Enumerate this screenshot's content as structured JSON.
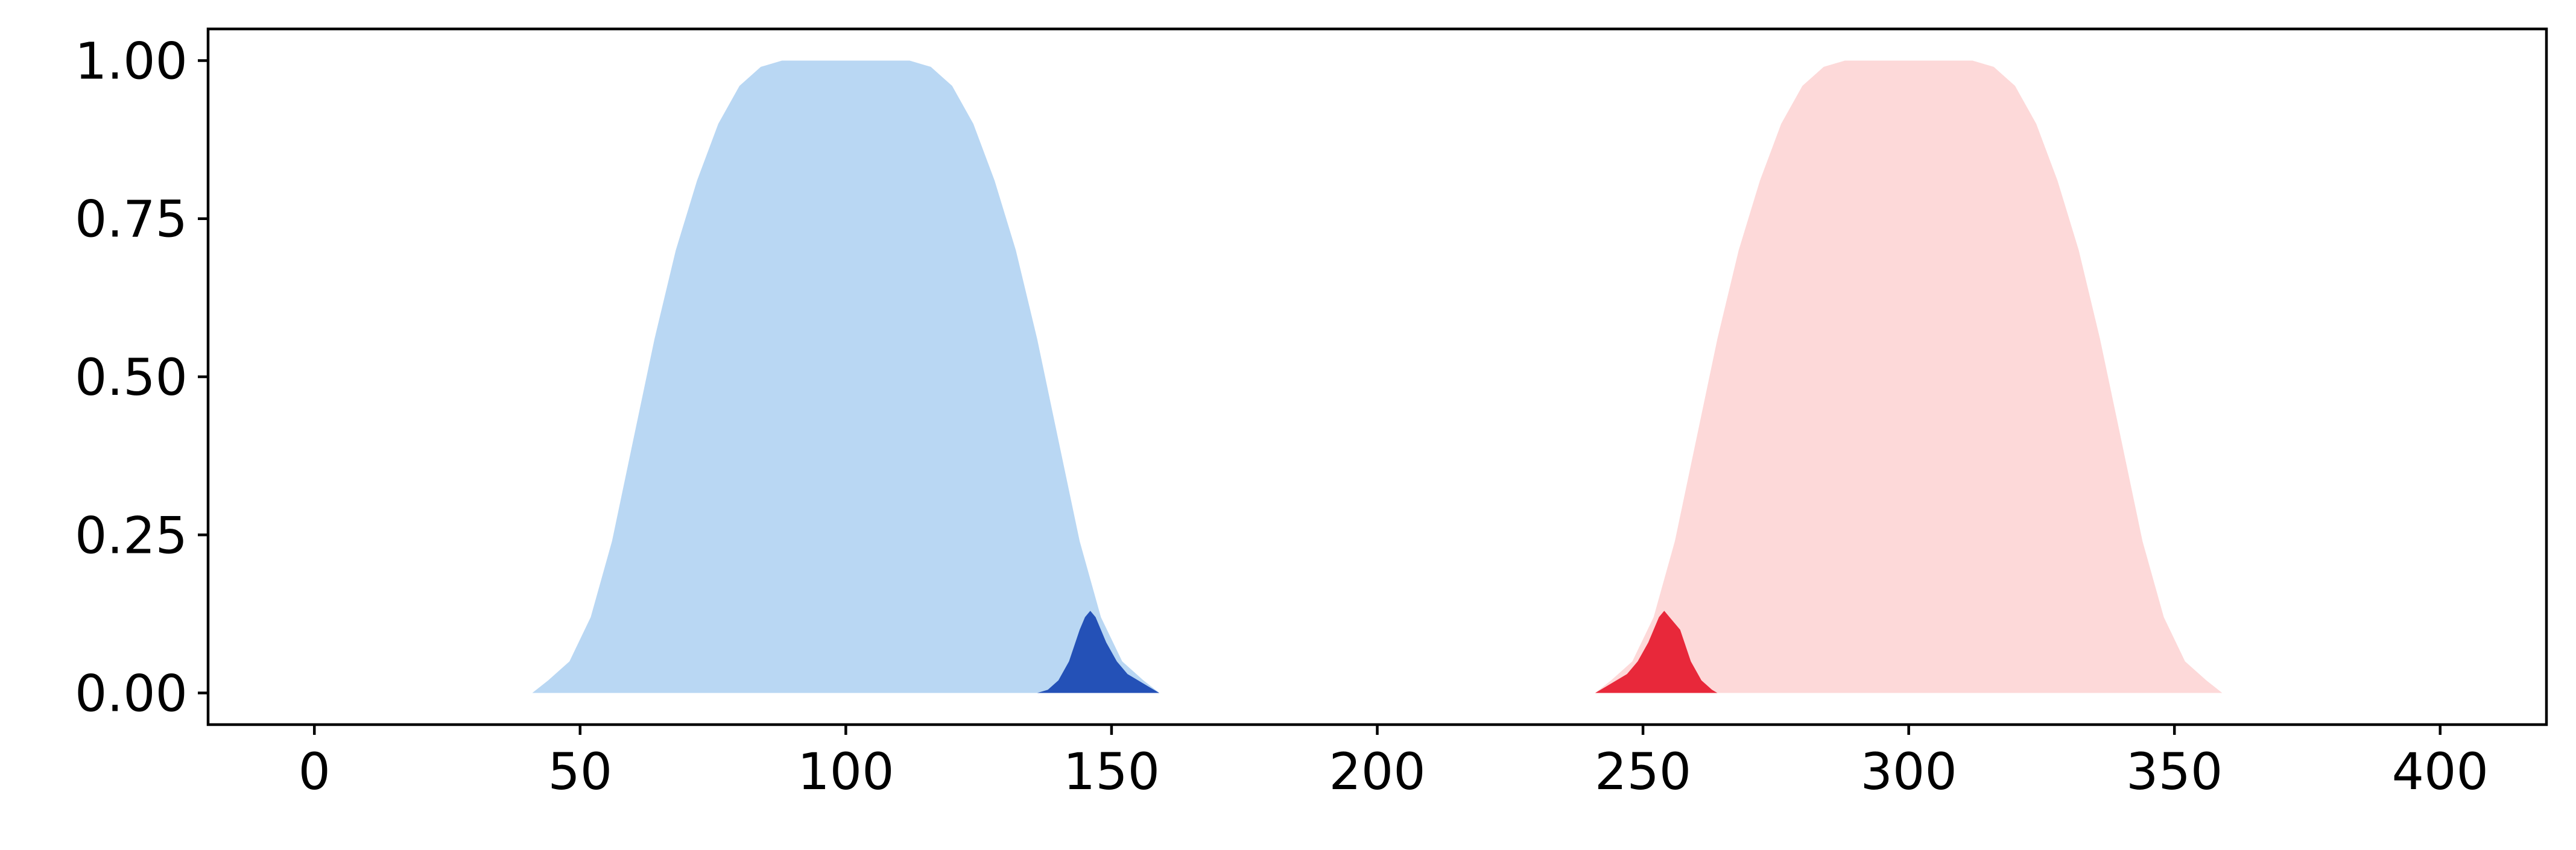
{
  "chart_data": {
    "type": "area",
    "title": "",
    "xlabel": "",
    "ylabel": "",
    "xlim": [
      -20,
      420
    ],
    "ylim": [
      -0.05,
      1.05
    ],
    "xticks": [
      0,
      50,
      100,
      150,
      200,
      250,
      300,
      350,
      400
    ],
    "yticks": [
      0.0,
      0.25,
      0.5,
      0.75,
      1.0
    ],
    "xtick_labels": [
      "0",
      "50",
      "100",
      "150",
      "200",
      "250",
      "300",
      "350",
      "400"
    ],
    "ytick_labels": [
      "0.00",
      "0.25",
      "0.50",
      "0.75",
      "1.00"
    ],
    "grid": false,
    "series": [
      {
        "color": "#b9d7f3",
        "x": [
          41,
          44,
          48,
          52,
          56,
          60,
          64,
          68,
          72,
          76,
          80,
          84,
          88,
          92,
          96,
          100,
          104,
          108,
          112,
          116,
          120,
          124,
          128,
          132,
          136,
          140,
          144,
          148,
          152,
          156,
          159
        ],
        "y": [
          0.0,
          0.02,
          0.05,
          0.12,
          0.24,
          0.4,
          0.56,
          0.7,
          0.81,
          0.9,
          0.96,
          0.99,
          1.0,
          1.0,
          1.0,
          1.0,
          1.0,
          1.0,
          1.0,
          0.99,
          0.96,
          0.9,
          0.81,
          0.7,
          0.56,
          0.4,
          0.24,
          0.12,
          0.05,
          0.02,
          0.0
        ]
      },
      {
        "color": "#2451b7",
        "x": [
          136,
          138,
          140,
          142,
          144,
          145,
          146,
          147,
          149,
          151,
          153,
          155,
          157,
          159
        ],
        "y": [
          0.0,
          0.005,
          0.02,
          0.05,
          0.1,
          0.12,
          0.13,
          0.12,
          0.08,
          0.05,
          0.03,
          0.02,
          0.01,
          0.0
        ]
      },
      {
        "color": "#fdd9d9",
        "x": [
          241,
          244,
          248,
          252,
          256,
          260,
          264,
          268,
          272,
          276,
          280,
          284,
          288,
          292,
          296,
          300,
          304,
          308,
          312,
          316,
          320,
          324,
          328,
          332,
          336,
          340,
          344,
          348,
          352,
          356,
          359
        ],
        "y": [
          0.0,
          0.02,
          0.05,
          0.12,
          0.24,
          0.4,
          0.56,
          0.7,
          0.81,
          0.9,
          0.96,
          0.99,
          1.0,
          1.0,
          1.0,
          1.0,
          1.0,
          1.0,
          1.0,
          0.99,
          0.96,
          0.9,
          0.81,
          0.7,
          0.56,
          0.4,
          0.24,
          0.12,
          0.05,
          0.02,
          0.0
        ]
      },
      {
        "color": "#e8283a",
        "x": [
          241,
          243,
          245,
          247,
          249,
          251,
          253,
          254,
          255,
          257,
          259,
          261,
          263,
          264
        ],
        "y": [
          0.0,
          0.01,
          0.02,
          0.03,
          0.05,
          0.08,
          0.12,
          0.13,
          0.12,
          0.1,
          0.05,
          0.02,
          0.005,
          0.0
        ]
      }
    ]
  }
}
